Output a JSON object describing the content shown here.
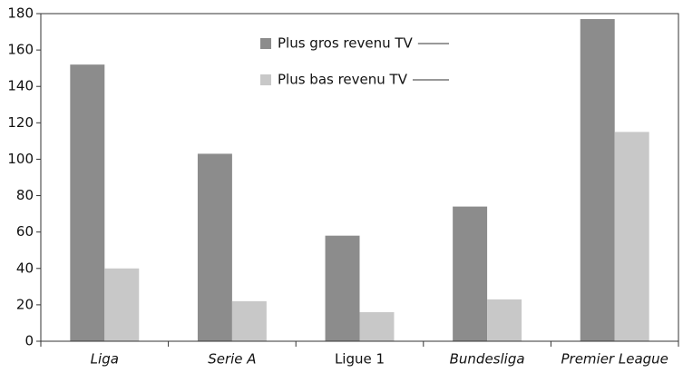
{
  "chart_data": {
    "type": "bar",
    "categories": [
      "Liga",
      "Serie A",
      "Ligue 1",
      "Bundesliga",
      "Premier League"
    ],
    "series": [
      {
        "name": "Plus gros revenu TV",
        "color": "#8c8c8c",
        "values": [
          152,
          103,
          58,
          74,
          177
        ]
      },
      {
        "name": "Plus bas revenu TV",
        "color": "#c8c8c8",
        "values": [
          40,
          22,
          16,
          23,
          115
        ]
      }
    ],
    "ylim": [
      0,
      180
    ],
    "yticks": [
      0,
      20,
      40,
      60,
      80,
      100,
      120,
      140,
      160,
      180
    ],
    "grid": false
  }
}
